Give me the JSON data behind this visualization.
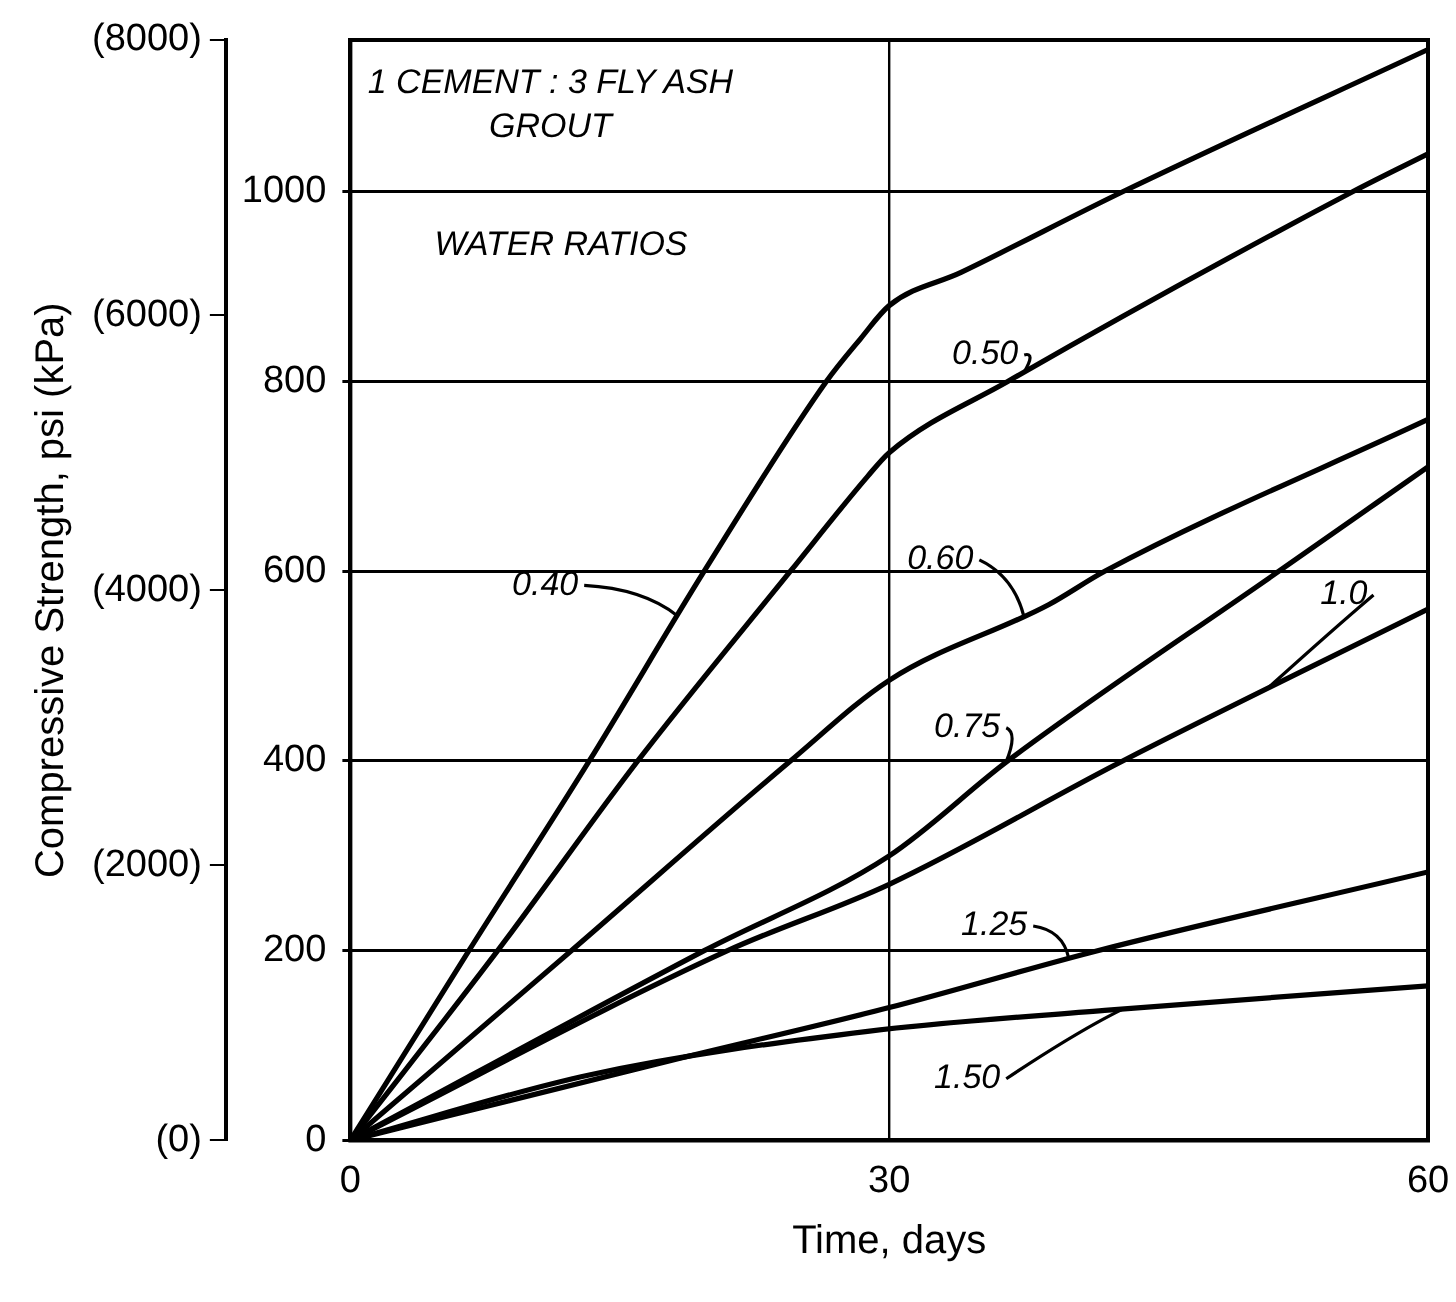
{
  "chart_data": {
    "type": "line",
    "title": "1 CEMENT : 3 FLY ASH GROUT",
    "legend_title": "WATER RATIOS",
    "xlabel": "Time, days",
    "y2label": "Compressive Strength, psi (kPa)",
    "xlim": [
      0,
      60
    ],
    "xticks": [
      0,
      30,
      60
    ],
    "ylim": [
      0,
      1160
    ],
    "yticks": [
      0,
      200,
      400,
      600,
      800,
      1000
    ],
    "y2lim": [
      0,
      8000
    ],
    "y2ticks": [
      {
        "value": 0,
        "label": "(0)"
      },
      {
        "value": 2000,
        "label": "(2000)"
      },
      {
        "value": 4000,
        "label": "(4000)"
      },
      {
        "value": 6000,
        "label": "(6000)"
      },
      {
        "value": 8000,
        "label": "(8000)"
      }
    ],
    "grid": "y",
    "ref_lines": [
      {
        "axis": "x",
        "value": 30
      }
    ],
    "legend": "center",
    "marker": "none",
    "line_style": "solid",
    "series": [
      {
        "name": "0.40",
        "color": "#000000",
        "x": [
          0,
          6.6,
          13.3,
          19.7,
          26.5,
          28.4,
          30,
          34,
          43,
          60
        ],
        "values": [
          0,
          200,
          400,
          600,
          800,
          845,
          880,
          915,
          1000,
          1150
        ]
      },
      {
        "name": "0.50",
        "color": "#000000",
        "x": [
          0,
          8.2,
          16,
          24.5,
          28.8,
          30,
          36.6,
          55.8,
          60
        ],
        "values": [
          0,
          200,
          400,
          600,
          700,
          725,
          800,
          1000,
          1040
        ]
      },
      {
        "name": "0.60",
        "color": "#000000",
        "x": [
          0,
          12.3,
          24.5,
          30,
          38.9,
          42,
          60
        ],
        "values": [
          0,
          200,
          400,
          485,
          565,
          600,
          760
        ]
      },
      {
        "name": "0.75",
        "color": "#000000",
        "x": [
          0,
          19.7,
          30,
          36.6,
          51.7,
          60
        ],
        "values": [
          0,
          200,
          300,
          400,
          600,
          710
        ]
      },
      {
        "name": "1.0",
        "color": "#000000",
        "x": [
          0,
          21,
          30,
          43,
          60
        ],
        "values": [
          0,
          200,
          270,
          400,
          560
        ]
      },
      {
        "name": "1.25",
        "color": "#000000",
        "x": [
          0,
          17.8,
          30,
          41.6,
          60
        ],
        "values": [
          0,
          84,
          140,
          200,
          283
        ]
      },
      {
        "name": "1.50",
        "color": "#000000",
        "x": [
          0,
          13.3,
          28.8,
          42,
          60
        ],
        "values": [
          0,
          69,
          115,
          137,
          163
        ]
      }
    ]
  }
}
